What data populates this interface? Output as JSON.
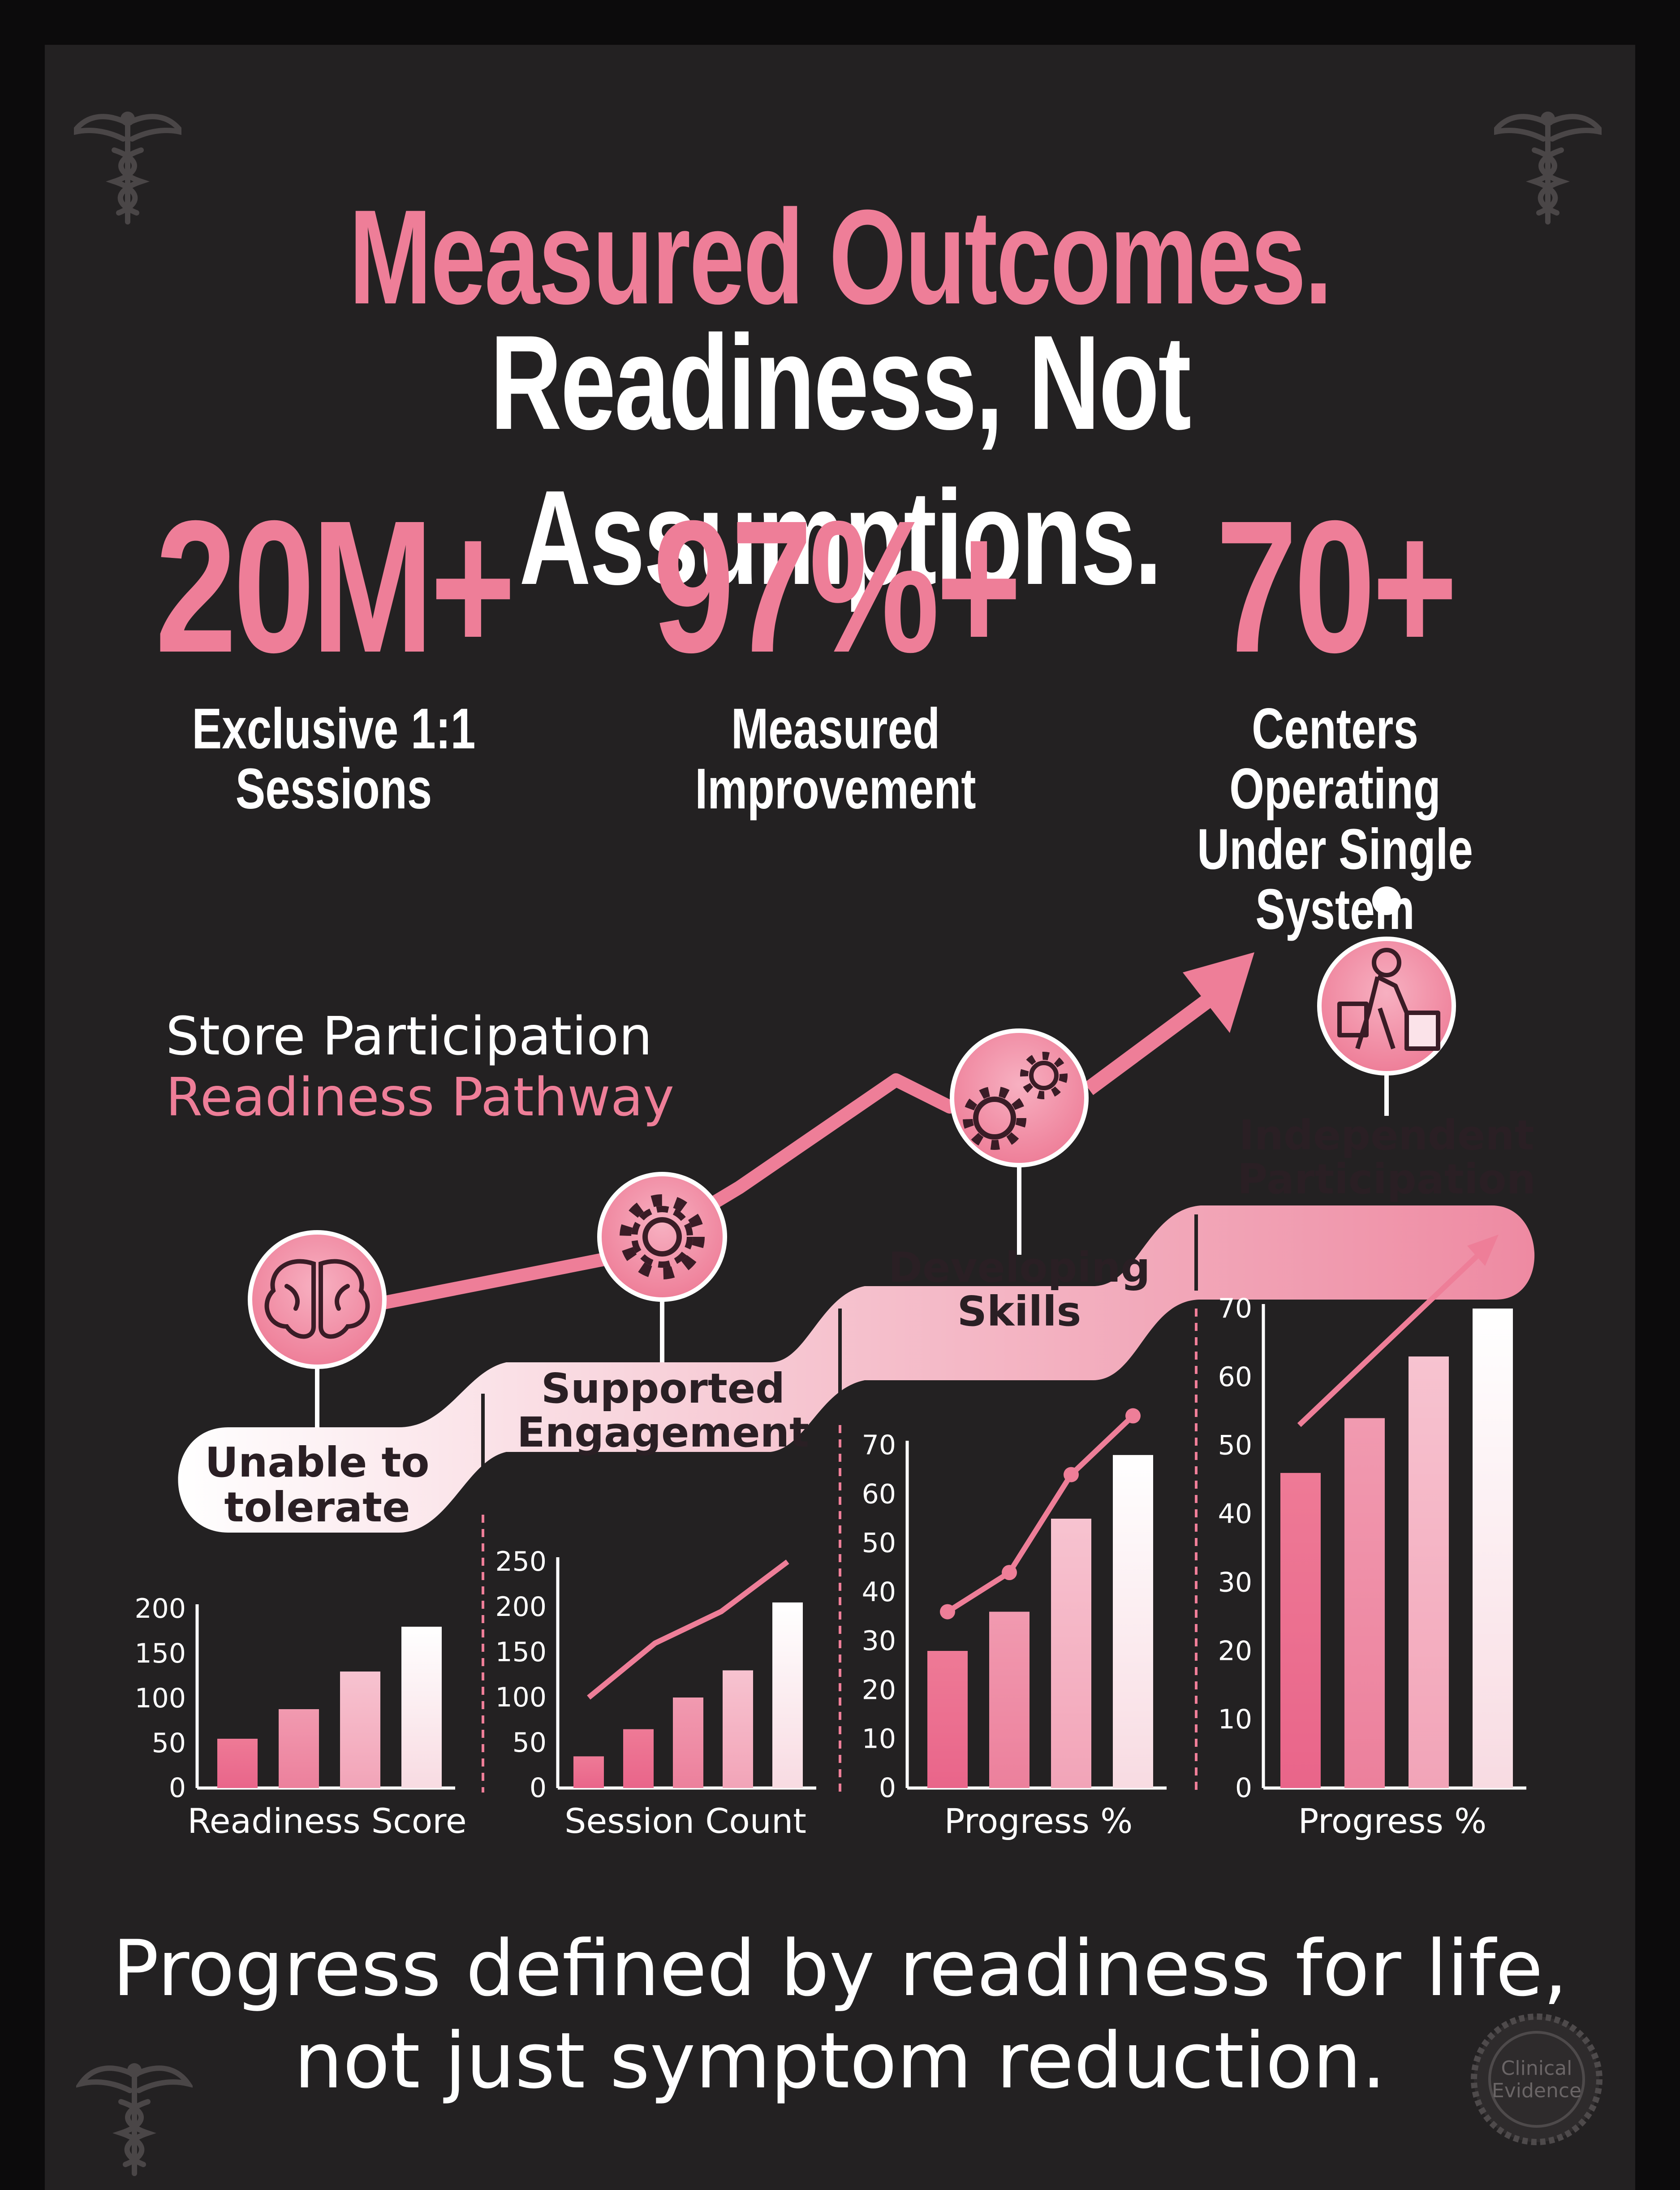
{
  "header": {
    "title_line1": "Measured Outcomes.",
    "title_line2": "Readiness, Not Assumptions."
  },
  "stats": [
    {
      "value": "20M+",
      "label_line1": "Exclusive 1:1",
      "label_line2": "Sessions"
    },
    {
      "value": "97%+",
      "label_line1": "Measured",
      "label_line2": "Improvement"
    },
    {
      "value": "70+",
      "label_line1": "Centers Operating",
      "label_line2": "Under Single System"
    }
  ],
  "pathway": {
    "title_line1": "Store Participation",
    "title_line2": "Readiness Pathway",
    "stages": [
      {
        "line1": "Unable to",
        "line2": "tolerate",
        "icon": "brain-icon"
      },
      {
        "line1": "Supported",
        "line2": "Engagement",
        "icon": "gear-icon"
      },
      {
        "line1": "Developing",
        "line2": "Skills",
        "icon": "gears-icon"
      },
      {
        "line1": "Independent",
        "line2": "Participation",
        "icon": "shopper-icon"
      }
    ]
  },
  "chart_data": [
    {
      "type": "bar",
      "xlabel": "Readiness Score",
      "ylim": [
        0,
        200
      ],
      "yticks": [
        0,
        50,
        100,
        150,
        200
      ],
      "values": [
        55,
        88,
        130,
        180
      ],
      "trend": null
    },
    {
      "type": "bar",
      "xlabel": "Session Count",
      "ylim": [
        0,
        250
      ],
      "yticks": [
        0,
        50,
        100,
        150,
        200,
        250
      ],
      "values": [
        35,
        65,
        100,
        130,
        205
      ],
      "trend": [
        100,
        160,
        195,
        250
      ]
    },
    {
      "type": "bar",
      "xlabel": "Progress %",
      "ylim": [
        0,
        70
      ],
      "yticks": [
        0,
        10,
        20,
        30,
        40,
        50,
        60,
        70
      ],
      "values": [
        28,
        36,
        55,
        68
      ],
      "trend": [
        36,
        44,
        64,
        76
      ]
    },
    {
      "type": "bar",
      "xlabel": "Progress %",
      "ylim": [
        0,
        70
      ],
      "yticks": [
        0,
        10,
        20,
        30,
        40,
        50,
        60,
        70
      ],
      "values": [
        46,
        54,
        63,
        70
      ],
      "trend": "arrow"
    }
  ],
  "footer": {
    "tagline_line1": "Progress defined by readiness for life,",
    "tagline_line2": "not just symptom reduction.",
    "seal_line1": "Clinical",
    "seal_line2": "Evidence"
  },
  "colors": {
    "accent": "#ee7e98",
    "background": "#232122",
    "text": "#ffffff"
  }
}
